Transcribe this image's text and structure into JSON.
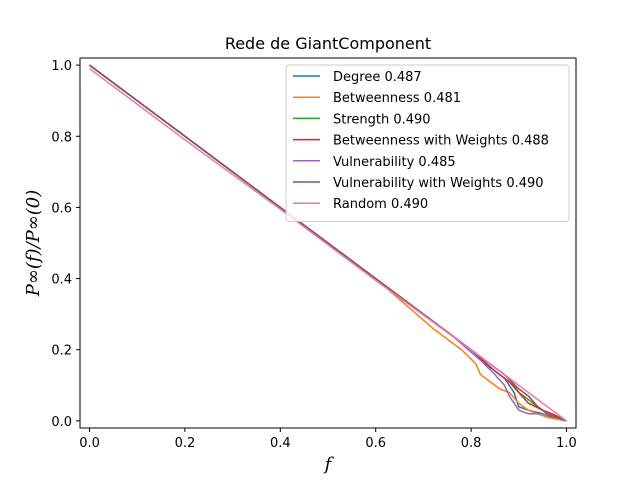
{
  "chart_data": {
    "type": "line",
    "title": "Rede de GiantComponent",
    "xlabel": "f",
    "ylabel": "P∞(f)/P∞(0)",
    "xlim": [
      -0.02,
      1.02
    ],
    "ylim": [
      -0.02,
      1.02
    ],
    "xticks": [
      0.0,
      0.2,
      0.4,
      0.6,
      0.8,
      1.0
    ],
    "yticks": [
      0.0,
      0.2,
      0.4,
      0.6,
      0.8,
      1.0
    ],
    "xtick_labels": [
      "0.0",
      "0.2",
      "0.4",
      "0.6",
      "0.8",
      "1.0"
    ],
    "ytick_labels": [
      "0.0",
      "0.2",
      "0.4",
      "0.6",
      "0.8",
      "1.0"
    ],
    "legend_position": "top-right",
    "series": [
      {
        "name": "Degree 0.487",
        "color": "#1f77b4",
        "x": [
          0.0,
          0.2,
          0.4,
          0.6,
          0.75,
          0.8,
          0.84,
          0.87,
          0.89,
          0.9,
          0.92,
          0.95,
          0.97,
          1.0
        ],
        "y": [
          1.0,
          0.8,
          0.6,
          0.4,
          0.25,
          0.2,
          0.15,
          0.12,
          0.08,
          0.04,
          0.03,
          0.02,
          0.01,
          0.0
        ]
      },
      {
        "name": "Betweenness 0.481",
        "color": "#ff7f0e",
        "x": [
          0.0,
          0.2,
          0.4,
          0.6,
          0.72,
          0.78,
          0.81,
          0.82,
          0.83,
          0.84,
          0.86,
          0.88,
          0.9,
          0.92,
          0.94,
          0.96,
          1.0
        ],
        "y": [
          1.0,
          0.8,
          0.6,
          0.4,
          0.26,
          0.2,
          0.16,
          0.13,
          0.12,
          0.11,
          0.09,
          0.08,
          0.05,
          0.03,
          0.02,
          0.01,
          0.0
        ]
      },
      {
        "name": "Strength 0.490",
        "color": "#2ca02c",
        "x": [
          0.0,
          0.2,
          0.4,
          0.6,
          0.8,
          0.85,
          0.88,
          0.9,
          0.93,
          0.96,
          1.0
        ],
        "y": [
          1.0,
          0.8,
          0.6,
          0.4,
          0.2,
          0.15,
          0.12,
          0.08,
          0.05,
          0.02,
          0.0
        ]
      },
      {
        "name": "Betweenness with Weights 0.488",
        "color": "#d62728",
        "x": [
          0.0,
          0.2,
          0.4,
          0.6,
          0.8,
          0.85,
          0.88,
          0.9,
          0.92,
          0.95,
          0.97,
          1.0
        ],
        "y": [
          1.0,
          0.8,
          0.6,
          0.4,
          0.2,
          0.14,
          0.11,
          0.08,
          0.05,
          0.03,
          0.02,
          0.0
        ]
      },
      {
        "name": "Vulnerability 0.485",
        "color": "#9467bd",
        "x": [
          0.0,
          0.2,
          0.4,
          0.6,
          0.76,
          0.82,
          0.85,
          0.87,
          0.88,
          0.89,
          0.9,
          0.92,
          0.95,
          0.98,
          1.0
        ],
        "y": [
          1.0,
          0.8,
          0.6,
          0.4,
          0.24,
          0.17,
          0.13,
          0.1,
          0.07,
          0.05,
          0.03,
          0.02,
          0.02,
          0.01,
          0.0
        ]
      },
      {
        "name": "Vulnerability with Weights 0.490",
        "color": "#8c564b",
        "x": [
          0.0,
          0.2,
          0.4,
          0.6,
          0.8,
          0.84,
          0.87,
          0.9,
          0.92,
          0.94,
          0.96,
          1.0
        ],
        "y": [
          1.0,
          0.8,
          0.6,
          0.4,
          0.2,
          0.16,
          0.13,
          0.09,
          0.07,
          0.04,
          0.02,
          0.0
        ]
      },
      {
        "name": "Random 0.490",
        "color": "#e377c2",
        "x": [
          0.0,
          0.2,
          0.4,
          0.6,
          0.8,
          0.9,
          1.0
        ],
        "y": [
          0.99,
          0.79,
          0.595,
          0.395,
          0.2,
          0.1,
          0.0
        ]
      }
    ]
  }
}
